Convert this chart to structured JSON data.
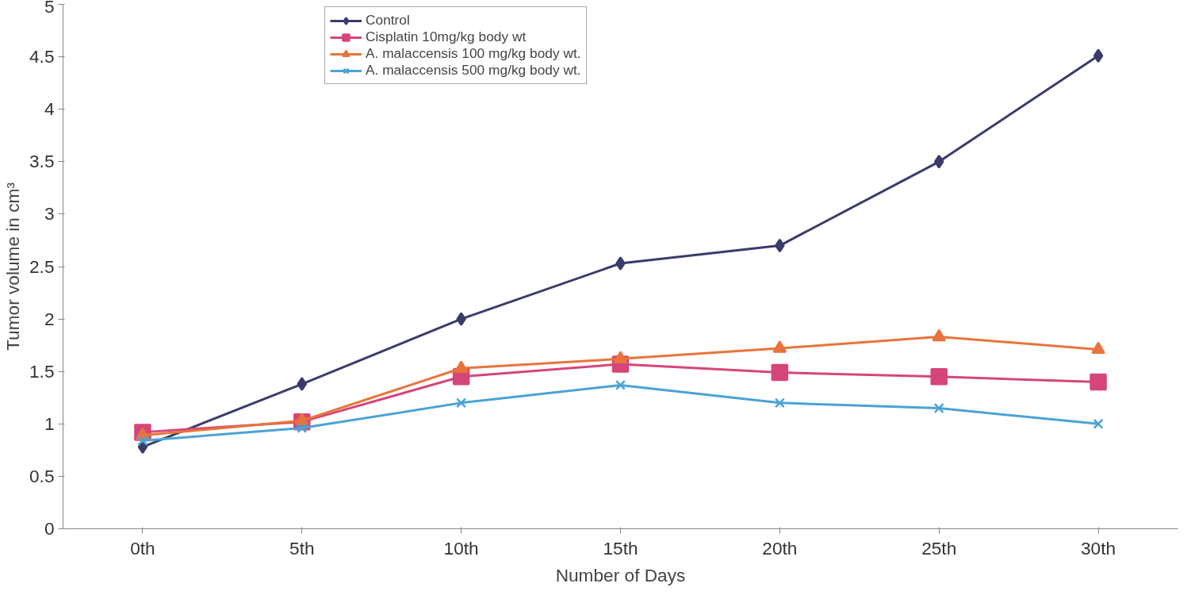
{
  "chart_data": {
    "type": "line",
    "xlabel": "Number of Days",
    "ylabel": "Tumor volume in cm³",
    "categories": [
      "0th",
      "5th",
      "10th",
      "15th",
      "20th",
      "25th",
      "30th"
    ],
    "ylim": [
      0,
      5
    ],
    "yticks": [
      0,
      0.5,
      1,
      1.5,
      2,
      2.5,
      3,
      3.5,
      4,
      4.5,
      5
    ],
    "grid": false,
    "legend": "top",
    "line_style": "solid",
    "series": [
      {
        "name": "Control",
        "color": "#3b3b6b",
        "marker": "diamond",
        "values": [
          0.78,
          1.38,
          2.0,
          2.53,
          2.7,
          3.5,
          4.51
        ]
      },
      {
        "name": "Cisplatin 10mg/kg body wt",
        "color": "#d6457a",
        "marker": "square",
        "values": [
          0.92,
          1.02,
          1.45,
          1.57,
          1.49,
          1.45,
          1.4
        ]
      },
      {
        "name": "A. malaccensis 100 mg/kg body wt.",
        "color": "#e8743b",
        "marker": "triangle",
        "values": [
          0.89,
          1.03,
          1.53,
          1.62,
          1.72,
          1.83,
          1.71
        ]
      },
      {
        "name": "A. malaccensis 500 mg/kg body wt.",
        "color": "#4aa3d6",
        "marker": "cross",
        "values": [
          0.84,
          0.96,
          1.2,
          1.37,
          1.2,
          1.15,
          1.0
        ]
      }
    ]
  }
}
